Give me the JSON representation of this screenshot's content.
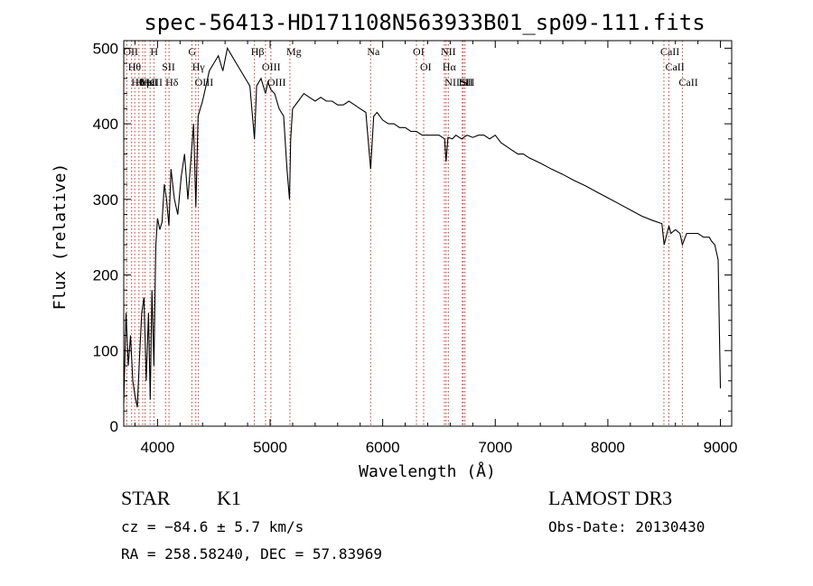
{
  "chart_data": {
    "type": "line",
    "title": "spec-56413-HD171108N563933B01_sp09-111.fits",
    "xlabel": "Wavelength (Å)",
    "ylabel": "Flux (relative)",
    "xlim": [
      3700,
      9100
    ],
    "ylim": [
      0,
      510
    ],
    "xticks": [
      4000,
      5000,
      6000,
      7000,
      8000,
      9000
    ],
    "xtick_labels": [
      "4000",
      "5000",
      "6000",
      "7000",
      "8000",
      "9000"
    ],
    "yticks": [
      0,
      100,
      200,
      300,
      400,
      500
    ],
    "ytick_labels": [
      "0",
      "100",
      "200",
      "300",
      "400",
      "500"
    ],
    "grid": false,
    "series": [
      {
        "name": "spectrum",
        "x": [
          3700,
          3720,
          3740,
          3760,
          3780,
          3800,
          3820,
          3840,
          3860,
          3880,
          3900,
          3920,
          3935,
          3950,
          3968,
          3985,
          4000,
          4020,
          4040,
          4060,
          4080,
          4101,
          4120,
          4150,
          4180,
          4210,
          4240,
          4270,
          4300,
          4320,
          4340,
          4360,
          4380,
          4400,
          4430,
          4460,
          4500,
          4540,
          4580,
          4620,
          4660,
          4700,
          4740,
          4780,
          4820,
          4861,
          4880,
          4920,
          4959,
          4980,
          5007,
          5040,
          5080,
          5120,
          5150,
          5172,
          5183,
          5200,
          5250,
          5300,
          5350,
          5400,
          5450,
          5500,
          5550,
          5600,
          5650,
          5700,
          5750,
          5800,
          5850,
          5893,
          5920,
          5950,
          6000,
          6050,
          6100,
          6150,
          6200,
          6250,
          6300,
          6350,
          6400,
          6450,
          6500,
          6550,
          6563,
          6580,
          6620,
          6650,
          6700,
          6750,
          6800,
          6850,
          6900,
          6950,
          7000,
          7050,
          7100,
          7150,
          7200,
          7250,
          7300,
          7400,
          7500,
          7600,
          7700,
          7800,
          7900,
          8000,
          8100,
          8200,
          8300,
          8400,
          8480,
          8500,
          8542,
          8560,
          8600,
          8640,
          8662,
          8700,
          8750,
          8800,
          8850,
          8900,
          8920,
          8950,
          8980,
          9000
        ],
        "y": [
          30,
          150,
          80,
          120,
          60,
          40,
          25,
          90,
          150,
          170,
          60,
          150,
          35,
          180,
          80,
          240,
          275,
          260,
          270,
          320,
          300,
          265,
          340,
          300,
          280,
          330,
          360,
          300,
          360,
          400,
          290,
          410,
          420,
          430,
          450,
          470,
          480,
          490,
          470,
          500,
          490,
          480,
          470,
          460,
          450,
          380,
          450,
          460,
          440,
          455,
          445,
          440,
          420,
          410,
          340,
          300,
          380,
          420,
          430,
          440,
          435,
          430,
          435,
          430,
          430,
          425,
          425,
          430,
          425,
          420,
          415,
          340,
          410,
          415,
          405,
          400,
          400,
          395,
          395,
          390,
          390,
          385,
          385,
          385,
          385,
          380,
          350,
          382,
          380,
          385,
          380,
          385,
          382,
          385,
          385,
          380,
          385,
          375,
          370,
          365,
          360,
          360,
          355,
          348,
          340,
          333,
          325,
          318,
          310,
          302,
          294,
          286,
          278,
          272,
          268,
          240,
          265,
          255,
          260,
          255,
          240,
          255,
          255,
          255,
          250,
          250,
          245,
          240,
          220,
          50
        ]
      }
    ],
    "line_markers": [
      {
        "lam": 3727,
        "label": "OII"
      },
      {
        "lam": 3770,
        "label": "Hθ"
      },
      {
        "lam": 3798,
        "label": "Hθ"
      },
      {
        "lam": 3835,
        "label": "Hη"
      },
      {
        "lam": 3869,
        "label": "NeIII"
      },
      {
        "lam": 3889,
        "label": "HeI"
      },
      {
        "lam": 3934,
        "label": "K"
      },
      {
        "lam": 3968,
        "label": "H"
      },
      {
        "lam": 4071,
        "label": "SII"
      },
      {
        "lam": 4102,
        "label": "Hδ"
      },
      {
        "lam": 4305,
        "label": "G"
      },
      {
        "lam": 4340,
        "label": "Hγ"
      },
      {
        "lam": 4363,
        "label": "OIII"
      },
      {
        "lam": 4861,
        "label": "Hβ"
      },
      {
        "lam": 4959,
        "label": "OIII"
      },
      {
        "lam": 5007,
        "label": "OIII"
      },
      {
        "lam": 5176,
        "label": "Mg"
      },
      {
        "lam": 5893,
        "label": "Na"
      },
      {
        "lam": 6300,
        "label": "OI"
      },
      {
        "lam": 6364,
        "label": "OI"
      },
      {
        "lam": 6548,
        "label": "NII"
      },
      {
        "lam": 6563,
        "label": "Hα"
      },
      {
        "lam": 6583,
        "label": "NII"
      },
      {
        "lam": 6707,
        "label": "Li"
      },
      {
        "lam": 6716,
        "label": "SII"
      },
      {
        "lam": 6731,
        "label": "SII"
      },
      {
        "lam": 8498,
        "label": "CaII"
      },
      {
        "lam": 8542,
        "label": "CaII"
      },
      {
        "lam": 8662,
        "label": "CaII"
      }
    ]
  },
  "info": {
    "object_class": "STAR",
    "subclass": "K1",
    "survey": "LAMOST DR3",
    "redshift": "cz = −84.6 ± 5.7 km/s",
    "obs_date": "Obs-Date: 20130430",
    "coords": "RA = 258.58240, DEC =  57.83969"
  },
  "colors": {
    "marker_line": "#c0392b",
    "axes": "#000000",
    "spectrum": "#000000"
  }
}
